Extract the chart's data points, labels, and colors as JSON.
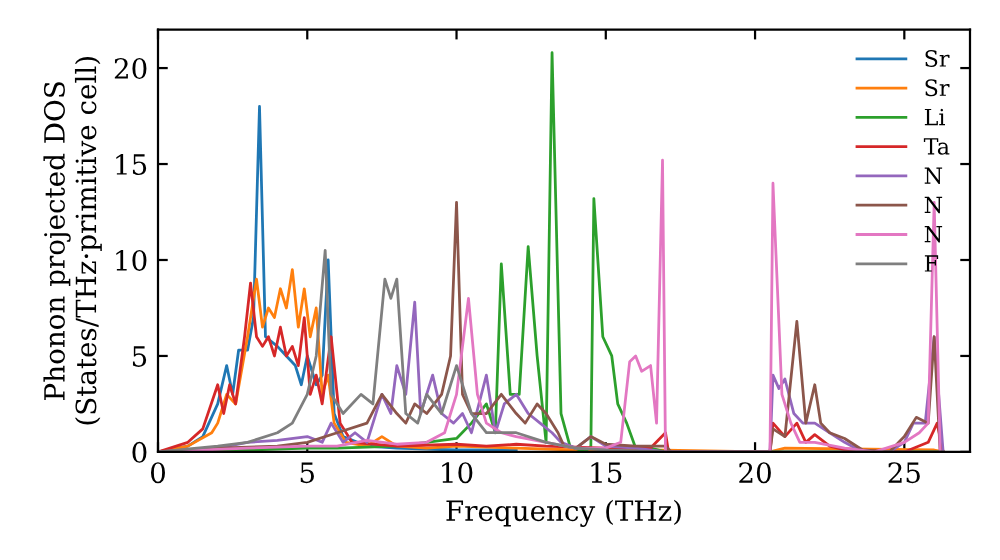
{
  "chart_data": {
    "type": "line",
    "xlabel": "Frequency (THz)",
    "ylabel": "Phonon projected DOS\n(States/THz·primitive cell)",
    "xlim": [
      0,
      27.2
    ],
    "ylim": [
      0,
      22
    ],
    "xticks": [
      0,
      5,
      10,
      15,
      20,
      25
    ],
    "yticks": [
      0,
      5,
      10,
      15,
      20
    ],
    "grid": false,
    "legend": "top right",
    "marker": "none",
    "line_style": "solid",
    "series": [
      {
        "name": "Sr",
        "color": "#1f77b4",
        "x": [
          0,
          1,
          1.5,
          2,
          2.3,
          2.5,
          2.7,
          3,
          3.2,
          3.4,
          3.6,
          4,
          4.3,
          4.6,
          4.8,
          5,
          5.3,
          5.5,
          5.7,
          5.9,
          6.2,
          7,
          8,
          10,
          12
        ],
        "values": [
          0,
          0.3,
          0.8,
          2.5,
          4.5,
          3,
          5.3,
          5.3,
          7,
          18,
          6,
          5.5,
          5,
          4.5,
          3.5,
          5,
          3.5,
          4,
          10,
          2,
          0.8,
          0.3,
          0.2,
          0.1,
          0.1
        ]
      },
      {
        "name": "Sr",
        "color": "#ff7f0e",
        "x": [
          0,
          1,
          1.8,
          2,
          2.3,
          2.6,
          3,
          3.3,
          3.5,
          3.7,
          3.9,
          4.1,
          4.3,
          4.5,
          4.7,
          4.9,
          5.1,
          5.3,
          5.5,
          5.7,
          5.9,
          6.3,
          7,
          7.5,
          8,
          9,
          10,
          12,
          14,
          16.5,
          20.5,
          21,
          26,
          26.3
        ],
        "values": [
          0,
          0.3,
          1,
          1.5,
          3,
          2.5,
          6,
          9,
          6.5,
          7.5,
          7,
          8.5,
          7.5,
          9.5,
          6.5,
          8.5,
          6,
          7.5,
          3,
          4,
          1.5,
          0.5,
          0.3,
          0.8,
          0.3,
          0.2,
          0.3,
          0.2,
          0.1,
          0.1,
          0,
          0.2,
          0.1,
          0
        ]
      },
      {
        "name": "Li",
        "color": "#2ca02c",
        "x": [
          0,
          3,
          5,
          6,
          8,
          9,
          10,
          10.5,
          11,
          11.3,
          11.5,
          11.8,
          12.1,
          12.4,
          12.7,
          13,
          13.2,
          13.5,
          13.8,
          14.3,
          14.5,
          14.6,
          14.9,
          15.2,
          15.4,
          15.7,
          16,
          16.5,
          17,
          20.5,
          26.3
        ],
        "values": [
          0,
          0.1,
          0.2,
          0.2,
          0.3,
          0.5,
          0.7,
          1.5,
          2.5,
          1,
          9.8,
          3,
          3,
          10.7,
          5,
          0.5,
          20.8,
          2,
          0.3,
          0,
          0.3,
          13.2,
          6,
          5,
          2.5,
          1.5,
          0.2,
          0.2,
          0,
          0,
          0
        ]
      },
      {
        "name": "Ta",
        "color": "#d62728",
        "x": [
          0,
          1,
          1.5,
          2,
          2.2,
          2.4,
          2.6,
          2.9,
          3.1,
          3.3,
          3.5,
          3.7,
          3.9,
          4.1,
          4.3,
          4.5,
          4.7,
          4.9,
          5.1,
          5.3,
          5.5,
          5.8,
          6.1,
          6.5,
          8,
          10,
          11,
          12,
          13,
          15,
          16.5,
          17,
          17.1,
          20.5,
          20.6,
          21,
          21.4,
          21.7,
          22,
          22.5,
          23,
          25,
          25.8,
          26.1,
          26.3
        ],
        "values": [
          0,
          0.5,
          1.2,
          3.5,
          2,
          3.5,
          2.5,
          6,
          8.8,
          6,
          5.5,
          6,
          5,
          6.5,
          5,
          5.5,
          4.5,
          7,
          3,
          4,
          2.5,
          6,
          1.5,
          0.5,
          0.3,
          0.4,
          0.3,
          0.4,
          0.3,
          0.2,
          0.2,
          1,
          0,
          0,
          1.5,
          0.8,
          1.5,
          0.5,
          0.9,
          0.3,
          0.1,
          0,
          0.5,
          1.5,
          0
        ]
      },
      {
        "name": "N",
        "color": "#9467bd",
        "x": [
          0,
          2,
          3,
          4,
          5,
          5.5,
          5.8,
          6.2,
          6.6,
          7,
          7.5,
          7.8,
          8,
          8.3,
          8.6,
          8.8,
          9.2,
          9.5,
          9.9,
          10.2,
          10.5,
          11,
          11.3,
          11.6,
          12,
          12.4,
          12.8,
          13.2,
          13.5,
          14,
          14.5,
          15,
          16,
          17,
          20.5,
          20.6,
          20.8,
          21,
          21.3,
          21.6,
          22,
          22.5,
          23,
          23.6,
          24.5,
          25,
          25.3,
          25.7,
          26,
          26.3
        ],
        "values": [
          0,
          0.2,
          0.5,
          0.6,
          0.8,
          0.5,
          1.5,
          0.5,
          1,
          0.5,
          3,
          2,
          4.5,
          3,
          7.8,
          2,
          4,
          2,
          1.5,
          2,
          1,
          4,
          1,
          2.5,
          3,
          2,
          1.5,
          1,
          0.5,
          0.2,
          0.8,
          0.3,
          0.2,
          0,
          0,
          4,
          3.3,
          3.8,
          2,
          1.5,
          1.5,
          1,
          0.5,
          0,
          0,
          0.5,
          1.5,
          1.5,
          6,
          0
        ]
      },
      {
        "name": "N",
        "color": "#8c564b",
        "x": [
          0,
          2,
          4,
          5,
          6,
          7,
          7.5,
          8,
          8.3,
          8.6,
          9,
          9.5,
          9.8,
          10,
          10.2,
          10.5,
          11,
          11.5,
          12,
          12.3,
          12.7,
          13,
          13.4,
          13.6,
          14,
          14.5,
          15,
          16,
          16.5,
          17,
          17.2,
          20.5,
          20.6,
          21,
          21.4,
          21.7,
          22,
          22.2,
          22.5,
          23,
          23.6,
          24.5,
          25,
          25.4,
          25.8,
          26,
          26.2
        ],
        "values": [
          0,
          0.2,
          0.3,
          0.5,
          1,
          1.5,
          3,
          2,
          1.5,
          2.5,
          2,
          3,
          5,
          13,
          3,
          2,
          2,
          3,
          2,
          1.5,
          2.5,
          2,
          1,
          0.3,
          0.2,
          0.8,
          0.4,
          0.3,
          0.3,
          0.3,
          0,
          0,
          1.2,
          0.8,
          6.8,
          1.5,
          3.5,
          1.5,
          1,
          0.7,
          0.1,
          0,
          0.8,
          1.8,
          1.5,
          6,
          0
        ]
      },
      {
        "name": "N",
        "color": "#e377c2",
        "x": [
          0,
          3,
          5,
          6,
          7,
          8,
          9,
          9.6,
          10,
          10.4,
          10.7,
          11,
          11.5,
          12,
          13,
          14,
          15,
          15.5,
          15.8,
          16,
          16.2,
          16.5,
          16.7,
          16.9,
          17,
          20.5,
          20.6,
          20.9,
          21.2,
          21.5,
          22,
          23,
          24,
          25,
          25.5,
          25.8,
          26,
          26.2
        ],
        "values": [
          0,
          0.2,
          0.3,
          0.3,
          0.6,
          0.4,
          0.5,
          1,
          3,
          8,
          3,
          1.5,
          1,
          0.8,
          0.5,
          0.2,
          0.2,
          0.5,
          4.7,
          5,
          4.2,
          4.5,
          1.5,
          15.2,
          0,
          0,
          14,
          3,
          1.5,
          0.5,
          0.5,
          0.2,
          0,
          0.5,
          1,
          1.5,
          13,
          0
        ]
      },
      {
        "name": "F",
        "color": "#7f7f7f",
        "x": [
          0,
          2,
          3,
          4,
          4.5,
          5,
          5.3,
          5.6,
          5.8,
          6.2,
          6.8,
          7.2,
          7.6,
          7.8,
          8,
          8.3,
          8.7,
          9,
          9.5,
          10,
          10.5,
          11,
          11.5,
          12,
          13,
          14,
          15,
          17,
          20.5,
          26.3
        ],
        "values": [
          0,
          0.3,
          0.5,
          1,
          1.5,
          3,
          5,
          10.5,
          3,
          2,
          3,
          2.5,
          9,
          8,
          9,
          2,
          1.5,
          3,
          2,
          4.5,
          2,
          1,
          1,
          1,
          0.5,
          0.2,
          0.1,
          0,
          0,
          0
        ]
      }
    ]
  }
}
